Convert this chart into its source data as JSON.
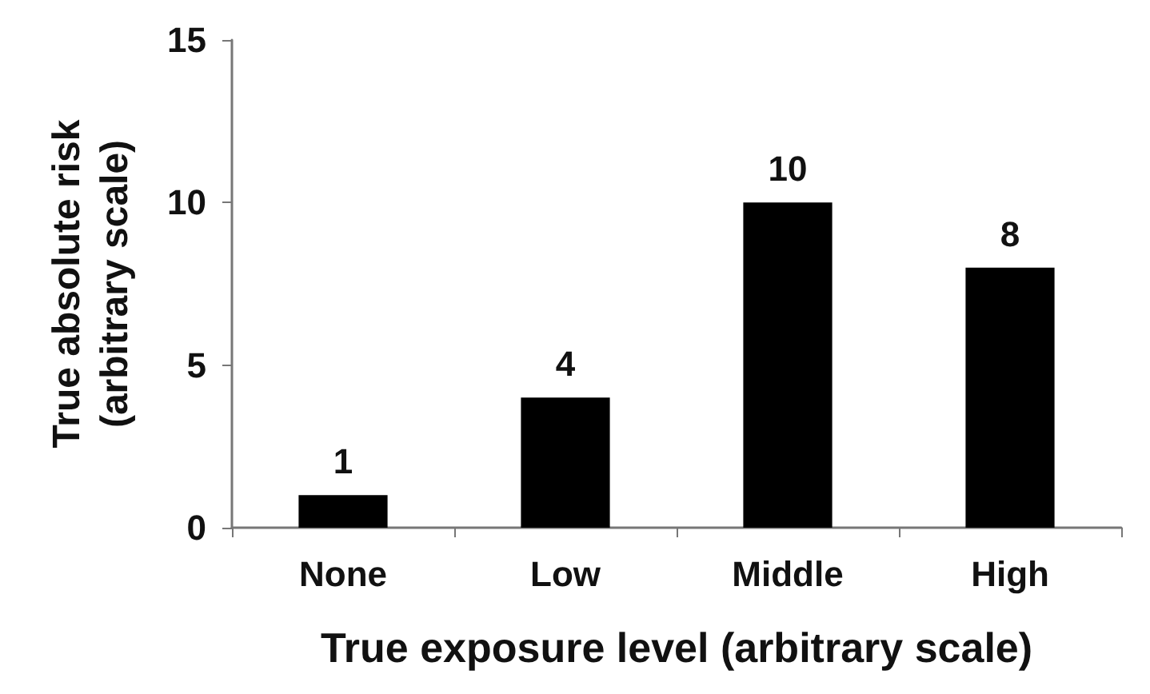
{
  "chart_data": {
    "type": "bar",
    "xlabel": "True exposure level (arbitrary scale)",
    "ylabel": "True absolute risk\n(arbitrary scale)",
    "categories": [
      "None",
      "Low",
      "Middle",
      "High"
    ],
    "values": [
      1,
      4,
      10,
      8
    ],
    "color": "#000000",
    "ylim": [
      0,
      15
    ],
    "yticks": [
      0,
      5,
      10,
      15
    ],
    "grid": false,
    "data_labels": true
  }
}
